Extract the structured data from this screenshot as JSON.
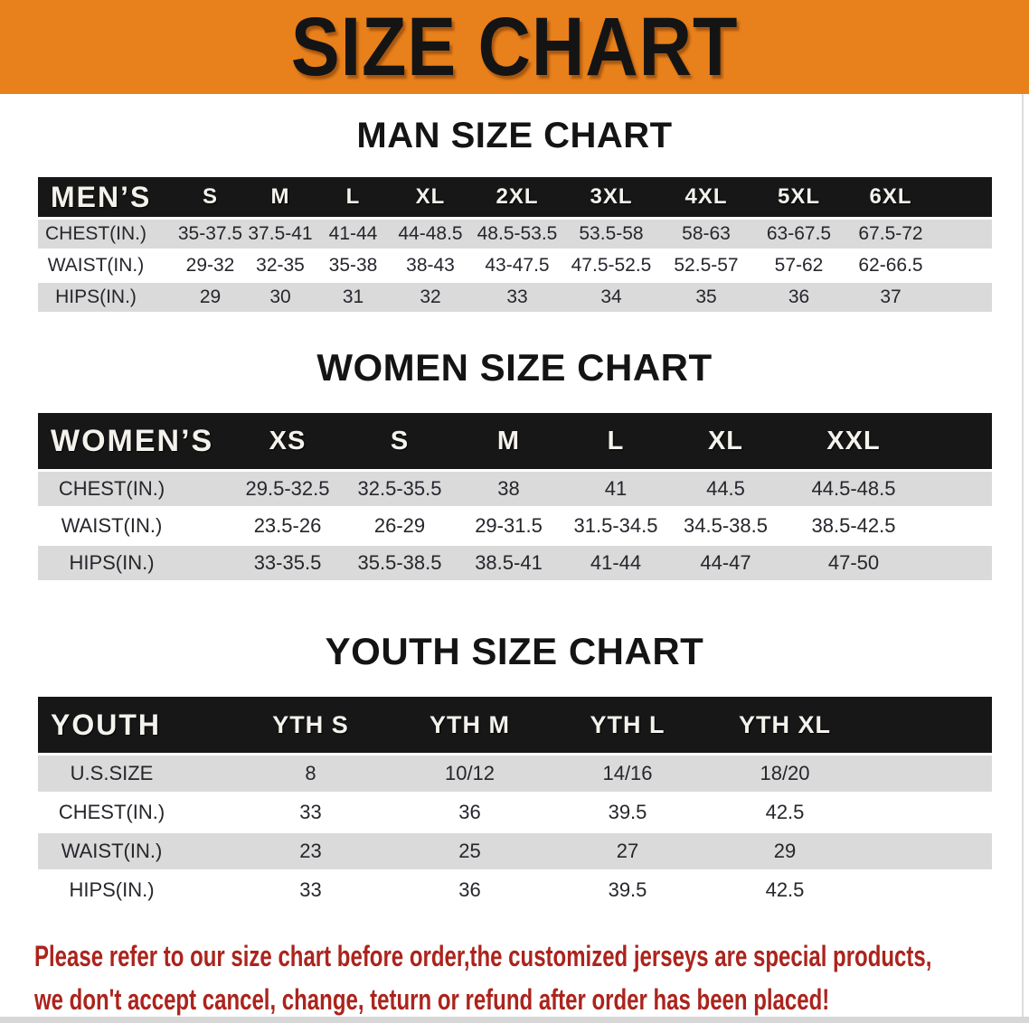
{
  "banner": {
    "title": "SIZE CHART",
    "bg_color": "#E8801B",
    "title_color": "#141414"
  },
  "sections": {
    "men": {
      "heading": "MAN SIZE CHART"
    },
    "women": {
      "heading": "WOMEN SIZE CHART"
    },
    "youth": {
      "heading": "YOUTH SIZE CHART"
    }
  },
  "tables": {
    "men": {
      "header": [
        "MEN’S",
        "S",
        "M",
        "L",
        "XL",
        "2XL",
        "3XL",
        "4XL",
        "5XL",
        "6XL"
      ],
      "rows": [
        [
          "CHEST(IN.)",
          "35-37.5",
          "37.5-41",
          "41-44",
          "44-48.5",
          "48.5-53.5",
          "53.5-58",
          "58-63",
          "63-67.5",
          "67.5-72"
        ],
        [
          "WAIST(IN.)",
          "29-32",
          "32-35",
          "35-38",
          "38-43",
          "43-47.5",
          "47.5-52.5",
          "52.5-57",
          "57-62",
          "62-66.5"
        ],
        [
          "HIPS(IN.)",
          "29",
          "30",
          "31",
          "32",
          "33",
          "34",
          "35",
          "36",
          "37"
        ]
      ]
    },
    "women": {
      "header": [
        "WOMEN’S",
        "XS",
        "S",
        "M",
        "L",
        "XL",
        "XXL"
      ],
      "rows": [
        [
          "CHEST(IN.)",
          "29.5-32.5",
          "32.5-35.5",
          "38",
          "41",
          "44.5",
          "44.5-48.5"
        ],
        [
          "WAIST(IN.)",
          "23.5-26",
          "26-29",
          "29-31.5",
          "31.5-34.5",
          "34.5-38.5",
          "38.5-42.5"
        ],
        [
          "HIPS(IN.)",
          "33-35.5",
          "35.5-38.5",
          "38.5-41",
          "41-44",
          "44-47",
          "47-50"
        ]
      ]
    },
    "youth": {
      "header": [
        "YOUTH",
        "YTH S",
        "YTH M",
        "YTH L",
        "YTH XL"
      ],
      "rows": [
        [
          "U.S.SIZE",
          "8",
          "10/12",
          "14/16",
          "18/20"
        ],
        [
          "CHEST(IN.)",
          "33",
          "36",
          "39.5",
          "42.5"
        ],
        [
          "WAIST(IN.)",
          "23",
          "25",
          "27",
          "29"
        ],
        [
          "HIPS(IN.)",
          "33",
          "36",
          "39.5",
          "42.5"
        ]
      ]
    }
  },
  "footer": {
    "line1": "Please refer to our size chart before order,the customized jerseys are special products,",
    "line2": "we don't accept cancel, change, teturn or refund after order has been placed!",
    "text_color": "#AB241D"
  },
  "colors": {
    "header_bar_bg": "#171717",
    "row_stripe_bg": "#DADADA",
    "heading_text": "#141414"
  }
}
